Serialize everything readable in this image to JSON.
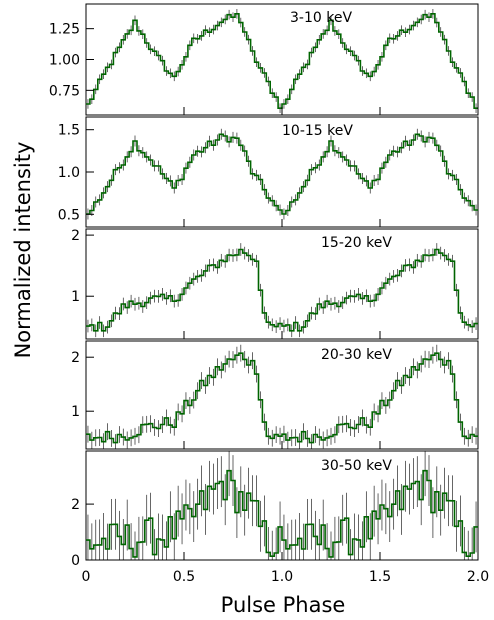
{
  "chart_data": {
    "type": "line",
    "xlabel": "Pulse Phase",
    "ylabel": "Normalized intensity",
    "xlim": [
      0,
      2.0
    ],
    "x_ticks": [
      0,
      0.5,
      1.0,
      1.5,
      2.0
    ],
    "x_tick_labels": [
      "0",
      "0.5",
      "1.0",
      "1.5",
      "2.0"
    ],
    "line_color": "#006400",
    "error_bar_color": "#000000",
    "panels": [
      {
        "band": "3-10 keV",
        "ylim": [
          0.55,
          1.45
        ],
        "y_ticks": [
          0.75,
          1.0,
          1.25
        ],
        "y_tick_labels": [
          "0.75",
          "1.00",
          "1.25"
        ],
        "phase": [
          0,
          0.1,
          0.25,
          0.35,
          0.45,
          0.55,
          0.7,
          0.78,
          0.85,
          1.0
        ],
        "intensity": [
          0.6,
          0.9,
          1.3,
          1.05,
          0.85,
          1.15,
          1.32,
          1.36,
          1.05,
          0.6
        ],
        "noise": 0.03
      },
      {
        "band": "10-15 keV",
        "ylim": [
          0.35,
          1.65
        ],
        "y_ticks": [
          0.5,
          1.0,
          1.5
        ],
        "y_tick_labels": [
          "0.5",
          "1.0",
          "1.5"
        ],
        "phase": [
          0,
          0.1,
          0.25,
          0.35,
          0.45,
          0.55,
          0.7,
          0.78,
          0.85,
          1.0
        ],
        "intensity": [
          0.45,
          0.8,
          1.35,
          1.1,
          0.8,
          1.2,
          1.42,
          1.38,
          1.0,
          0.48
        ],
        "noise": 0.05
      },
      {
        "band": "15-20 keV",
        "ylim": [
          0.3,
          2.1
        ],
        "y_ticks": [
          1,
          2
        ],
        "y_tick_labels": [
          "1",
          "2"
        ],
        "phase": [
          0,
          0.1,
          0.2,
          0.35,
          0.45,
          0.55,
          0.7,
          0.8,
          0.87,
          0.92,
          1.0
        ],
        "intensity": [
          0.5,
          0.5,
          0.85,
          0.95,
          0.95,
          1.25,
          1.6,
          1.75,
          1.6,
          0.5,
          0.5
        ],
        "noise": 0.08
      },
      {
        "band": "20-30 keV",
        "ylim": [
          0.3,
          2.3
        ],
        "y_ticks": [
          1,
          2
        ],
        "y_tick_labels": [
          "1",
          "2"
        ],
        "phase": [
          0,
          0.2,
          0.3,
          0.45,
          0.6,
          0.7,
          0.8,
          0.87,
          0.92,
          1.0
        ],
        "intensity": [
          0.5,
          0.55,
          0.7,
          0.8,
          1.5,
          1.85,
          2.05,
          1.8,
          0.55,
          0.5
        ],
        "noise": 0.12
      },
      {
        "band": "30-50 keV",
        "ylim": [
          0,
          3.9
        ],
        "y_ticks": [
          0,
          2
        ],
        "y_tick_labels": [
          "0",
          "2"
        ],
        "phase": [
          0,
          0.2,
          0.4,
          0.5,
          0.6,
          0.7,
          0.75,
          0.85,
          0.92,
          1.0
        ],
        "intensity": [
          0.6,
          0.7,
          0.9,
          1.2,
          2.0,
          2.8,
          2.5,
          1.8,
          0.7,
          0.6
        ],
        "noise": 0.7
      }
    ]
  }
}
